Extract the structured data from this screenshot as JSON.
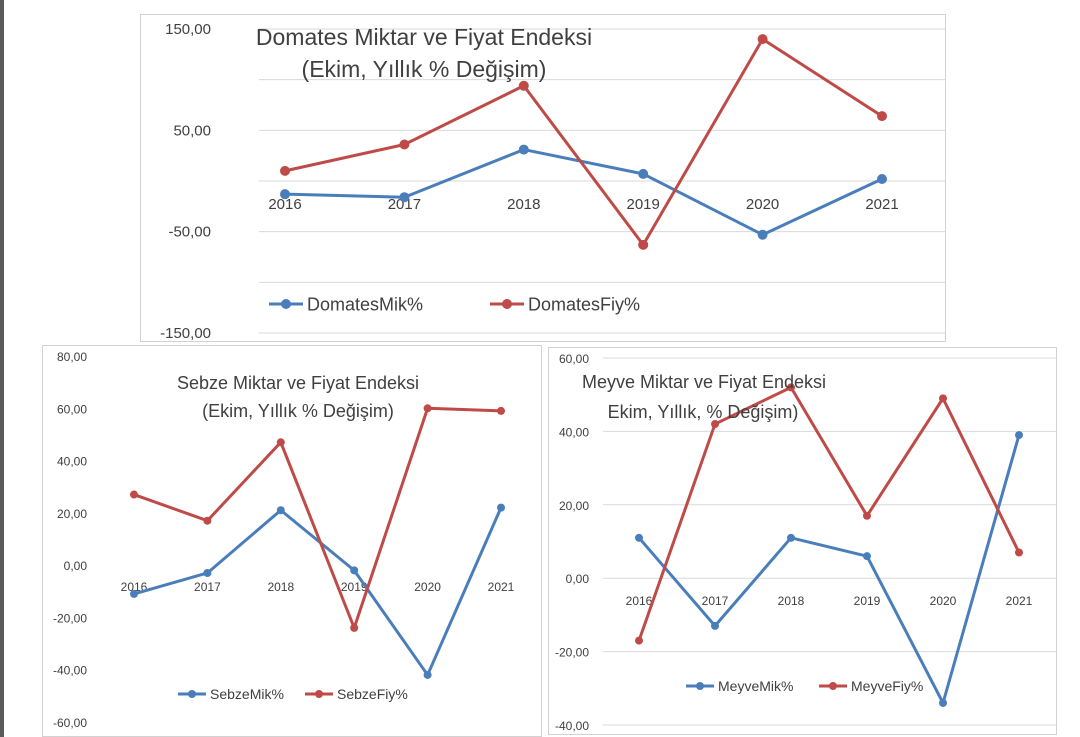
{
  "chart_data": [
    {
      "type": "line",
      "title": "Domates Miktar ve Fiyat Endeksi",
      "subtitle": "(Ekim, Yıllık % Değişim)",
      "categories": [
        "2016",
        "2017",
        "2018",
        "2019",
        "2020",
        "2021"
      ],
      "y_tick_labels": [
        "150,00",
        "50,00",
        "-50,00",
        "-150,00"
      ],
      "ylim": [
        -150,
        150
      ],
      "grid": true,
      "legend_position": "bottom",
      "series": [
        {
          "name": "DomatesMik%",
          "color": "#4a7ebb",
          "values": [
            -13,
            -16,
            31,
            7,
            -53,
            2
          ]
        },
        {
          "name": "DomatesFiy%",
          "color": "#be4b48",
          "values": [
            10,
            36,
            94,
            -63,
            140,
            64
          ]
        }
      ]
    },
    {
      "type": "line",
      "title": "Sebze Miktar ve Fiyat Endeksi",
      "subtitle": "(Ekim, Yıllık % Değişim)",
      "categories": [
        "2016",
        "2017",
        "2018",
        "2019",
        "2020",
        "2021"
      ],
      "y_tick_labels": [
        "80,00",
        "60,00",
        "40,00",
        "20,00",
        "0,00",
        "-20,00",
        "-40,00",
        "-60,00"
      ],
      "ylim": [
        -60,
        80
      ],
      "grid": false,
      "legend_position": "bottom",
      "series": [
        {
          "name": "SebzeMik%",
          "color": "#4a7ebb",
          "values": [
            -11,
            -3,
            21,
            -2,
            -42,
            22
          ]
        },
        {
          "name": "SebzeFiy%",
          "color": "#be4b48",
          "values": [
            27,
            17,
            47,
            -24,
            60,
            59
          ]
        }
      ]
    },
    {
      "type": "line",
      "title": "Meyve Miktar ve Fiyat Endeksi",
      "subtitle": "Ekim, Yıllık, % Değişim)",
      "categories": [
        "2016",
        "2017",
        "2018",
        "2019",
        "2020",
        "2021"
      ],
      "y_tick_labels": [
        "60,00",
        "40,00",
        "20,00",
        "0,00",
        "-20,00",
        "-40,00"
      ],
      "ylim": [
        -40,
        60
      ],
      "grid": true,
      "legend_position": "bottom",
      "series": [
        {
          "name": "MeyveMik%",
          "color": "#4a7ebb",
          "values": [
            11,
            -13,
            11,
            6,
            -34,
            39
          ]
        },
        {
          "name": "MeyveFiy%",
          "color": "#be4b48",
          "values": [
            -17,
            42,
            52,
            17,
            49,
            7
          ]
        }
      ]
    }
  ]
}
